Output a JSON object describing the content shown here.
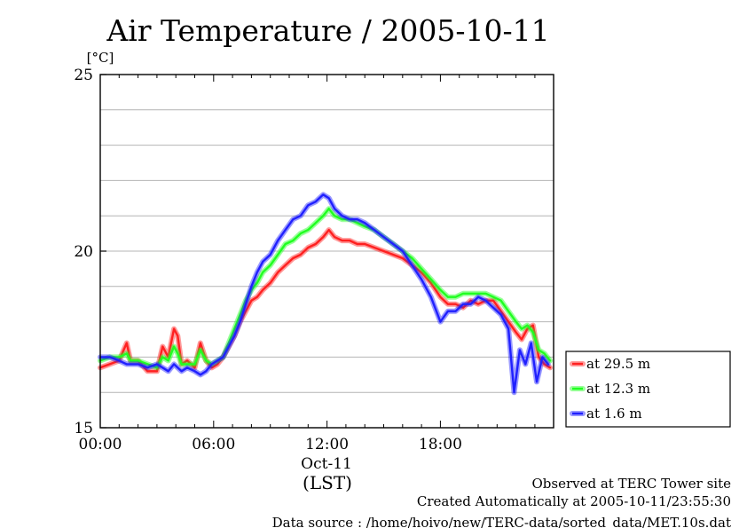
{
  "chart_data": {
    "type": "line",
    "title": "Air Temperature / 2005-10-11",
    "y_unit": "[°C]",
    "ylim": [
      15,
      25
    ],
    "y_ticks": [
      15,
      20,
      25
    ],
    "y_tick_labels": [
      "15",
      "20",
      "25"
    ],
    "y_grid_step": 1,
    "xlim": [
      0,
      23.99
    ],
    "x_ticks": [
      0,
      6,
      12,
      18
    ],
    "x_tick_labels": [
      "00:00",
      "06:00",
      "12:00",
      "18:00"
    ],
    "x_sublabel": "Oct-11",
    "x_axis_label": "(LST)",
    "grid": "horizontal",
    "legend_position": "right-bottom",
    "series": [
      {
        "name": "at 29.5 m",
        "color": "#ff2020",
        "x": [
          0,
          0.5,
          1.0,
          1.4,
          1.6,
          2.0,
          2.5,
          3.0,
          3.3,
          3.6,
          3.9,
          4.1,
          4.3,
          4.6,
          5.0,
          5.3,
          5.6,
          5.9,
          6.2,
          6.5,
          6.8,
          7.1,
          7.4,
          7.7,
          8.0,
          8.3,
          8.6,
          9.0,
          9.4,
          9.8,
          10.2,
          10.6,
          11.0,
          11.4,
          11.8,
          12.1,
          12.4,
          12.8,
          13.2,
          13.6,
          14.0,
          14.5,
          15.0,
          15.5,
          16.0,
          16.5,
          17.0,
          17.5,
          18.0,
          18.4,
          18.8,
          19.2,
          19.6,
          20.0,
          20.4,
          20.8,
          21.2,
          21.6,
          22.0,
          22.3,
          22.6,
          22.9,
          23.2,
          23.5,
          23.8
        ],
        "values": [
          16.7,
          16.8,
          16.9,
          17.4,
          16.9,
          16.9,
          16.6,
          16.6,
          17.3,
          17.0,
          17.8,
          17.6,
          16.8,
          16.9,
          16.7,
          17.4,
          16.9,
          16.7,
          16.8,
          17.0,
          17.3,
          17.6,
          18.0,
          18.3,
          18.6,
          18.7,
          18.9,
          19.1,
          19.4,
          19.6,
          19.8,
          19.9,
          20.1,
          20.2,
          20.4,
          20.6,
          20.4,
          20.3,
          20.3,
          20.2,
          20.2,
          20.1,
          20.0,
          19.9,
          19.8,
          19.6,
          19.4,
          19.1,
          18.7,
          18.5,
          18.5,
          18.4,
          18.6,
          18.5,
          18.6,
          18.6,
          18.3,
          18.0,
          17.7,
          17.5,
          17.8,
          17.9,
          17.0,
          16.8,
          16.7
        ]
      },
      {
        "name": "at 12.3 m",
        "color": "#20ff20",
        "x": [
          0,
          0.5,
          1.0,
          1.4,
          1.6,
          2.0,
          2.5,
          3.0,
          3.3,
          3.6,
          3.9,
          4.1,
          4.3,
          4.6,
          5.0,
          5.3,
          5.6,
          5.9,
          6.2,
          6.5,
          6.8,
          7.1,
          7.4,
          7.7,
          8.0,
          8.3,
          8.6,
          9.0,
          9.4,
          9.8,
          10.2,
          10.6,
          11.0,
          11.4,
          11.8,
          12.1,
          12.4,
          12.8,
          13.2,
          13.6,
          14.0,
          14.5,
          15.0,
          15.5,
          16.0,
          16.5,
          17.0,
          17.5,
          18.0,
          18.4,
          18.8,
          19.2,
          19.6,
          20.0,
          20.4,
          20.8,
          21.2,
          21.6,
          22.0,
          22.3,
          22.6,
          22.9,
          23.2,
          23.5,
          23.8
        ],
        "values": [
          16.9,
          17.0,
          17.0,
          17.1,
          16.9,
          16.9,
          16.8,
          16.7,
          17.0,
          16.9,
          17.3,
          17.1,
          16.8,
          16.8,
          16.8,
          17.2,
          16.9,
          16.8,
          16.9,
          17.0,
          17.4,
          17.8,
          18.2,
          18.6,
          18.9,
          19.1,
          19.4,
          19.6,
          19.9,
          20.2,
          20.3,
          20.5,
          20.6,
          20.8,
          21.0,
          21.2,
          21.0,
          20.9,
          20.9,
          20.8,
          20.7,
          20.6,
          20.4,
          20.2,
          20.0,
          19.8,
          19.5,
          19.2,
          18.9,
          18.7,
          18.7,
          18.8,
          18.8,
          18.8,
          18.8,
          18.7,
          18.6,
          18.3,
          18.0,
          17.8,
          17.9,
          17.7,
          17.2,
          17.1,
          16.9
        ]
      },
      {
        "name": "at 1.6 m",
        "color": "#2020ff",
        "x": [
          0,
          0.5,
          1.0,
          1.4,
          1.6,
          2.0,
          2.5,
          3.0,
          3.3,
          3.6,
          3.9,
          4.1,
          4.3,
          4.6,
          5.0,
          5.3,
          5.6,
          5.9,
          6.2,
          6.5,
          6.8,
          7.1,
          7.4,
          7.7,
          8.0,
          8.3,
          8.6,
          9.0,
          9.4,
          9.8,
          10.2,
          10.6,
          11.0,
          11.4,
          11.8,
          12.1,
          12.4,
          12.8,
          13.2,
          13.6,
          14.0,
          14.5,
          15.0,
          15.5,
          16.0,
          16.5,
          17.0,
          17.5,
          18.0,
          18.4,
          18.8,
          19.2,
          19.6,
          20.0,
          20.4,
          20.8,
          21.2,
          21.6,
          21.9,
          22.2,
          22.5,
          22.8,
          23.1,
          23.4,
          23.7
        ],
        "values": [
          17.0,
          17.0,
          16.9,
          16.8,
          16.8,
          16.8,
          16.7,
          16.8,
          16.7,
          16.6,
          16.8,
          16.7,
          16.6,
          16.7,
          16.6,
          16.5,
          16.6,
          16.8,
          16.9,
          17.0,
          17.3,
          17.6,
          18.0,
          18.5,
          19.0,
          19.4,
          19.7,
          19.9,
          20.3,
          20.6,
          20.9,
          21.0,
          21.3,
          21.4,
          21.6,
          21.5,
          21.2,
          21.0,
          20.9,
          20.9,
          20.8,
          20.6,
          20.4,
          20.2,
          20.0,
          19.6,
          19.2,
          18.7,
          18.0,
          18.3,
          18.3,
          18.5,
          18.5,
          18.7,
          18.6,
          18.4,
          18.2,
          17.8,
          16.0,
          17.2,
          16.8,
          17.4,
          16.3,
          17.0,
          16.8
        ]
      }
    ]
  },
  "notes": {
    "site": "Observed at TERC Tower site",
    "created": "Created Automatically at 2005-10-11/23:55:30",
    "source": "Data source : /home/hoivo/new/TERC-data/sorted_data/MET.10s.dat"
  }
}
